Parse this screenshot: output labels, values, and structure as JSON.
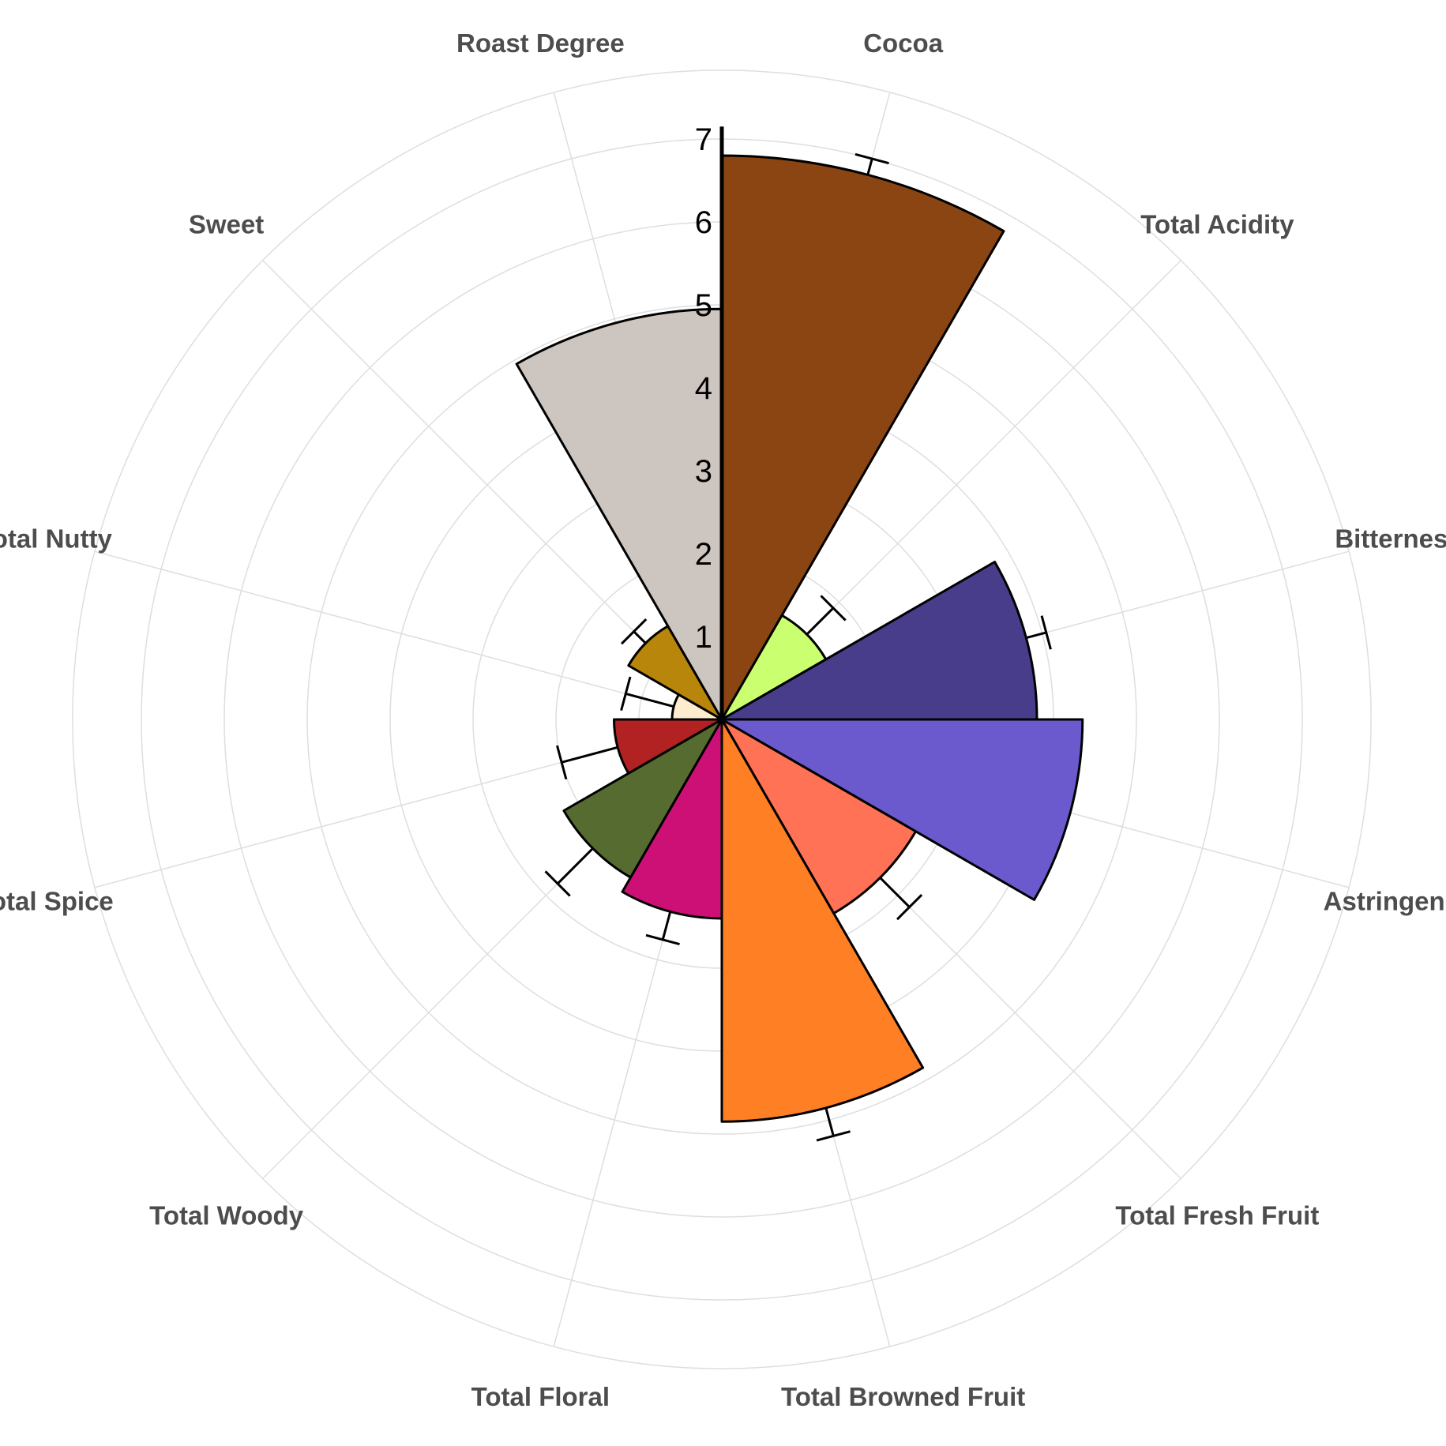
{
  "chart_data": {
    "type": "polar-bar",
    "title": "",
    "radial_axis": {
      "min": 0,
      "max": 7,
      "ticks": [
        1,
        2,
        3,
        4,
        5,
        6,
        7
      ]
    },
    "grid": true,
    "legend": "none",
    "categories": [
      "Cocoa",
      "Total Acidity",
      "Bitterness",
      "Astringency",
      "Total Fresh Fruit",
      "Total Browned Fruit",
      "Total Floral",
      "Total Woody",
      "Total Spice",
      "Total Nutty",
      "Sweet",
      "Roast Degree"
    ],
    "values": [
      6.8,
      1.45,
      3.8,
      4.35,
      2.7,
      4.85,
      2.4,
      2.2,
      1.3,
      0.6,
      1.3,
      4.95
    ],
    "error_upper": [
      7.0,
      1.9,
      4.05,
      null,
      3.2,
      5.2,
      2.75,
      2.8,
      2.0,
      1.2,
      1.5,
      null
    ],
    "colors": [
      "#8B4513",
      "#CAFF70",
      "#483D8B",
      "#6A5ACD",
      "#FF7256",
      "#FF7F24",
      "#CD1076",
      "#556B2F",
      "#B22222",
      "#FFEBCD",
      "#B8860B",
      "#CDC5BF"
    ]
  }
}
